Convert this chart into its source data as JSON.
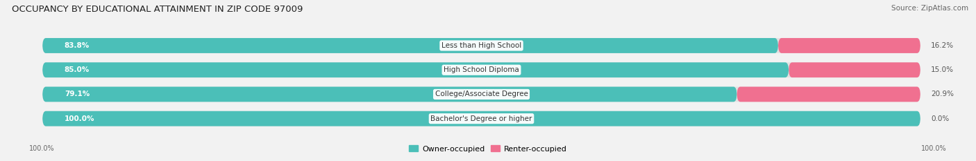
{
  "title": "OCCUPANCY BY EDUCATIONAL ATTAINMENT IN ZIP CODE 97009",
  "source": "Source: ZipAtlas.com",
  "categories": [
    "Less than High School",
    "High School Diploma",
    "College/Associate Degree",
    "Bachelor's Degree or higher"
  ],
  "owner_values": [
    83.8,
    85.0,
    79.1,
    100.0
  ],
  "renter_values": [
    16.2,
    15.0,
    20.9,
    0.0
  ],
  "owner_color": "#4BBFB8",
  "renter_color": "#F07090",
  "background_color": "#f2f2f2",
  "bar_bg_color": "#e2e2e2",
  "title_fontsize": 9.5,
  "source_fontsize": 7.5,
  "label_fontsize": 7.5,
  "value_fontsize": 7.5,
  "axis_label_fontsize": 7,
  "legend_fontsize": 8,
  "bar_height": 0.62,
  "total_width": 100.0,
  "x_left_label": "100.0%",
  "x_right_label": "100.0%"
}
